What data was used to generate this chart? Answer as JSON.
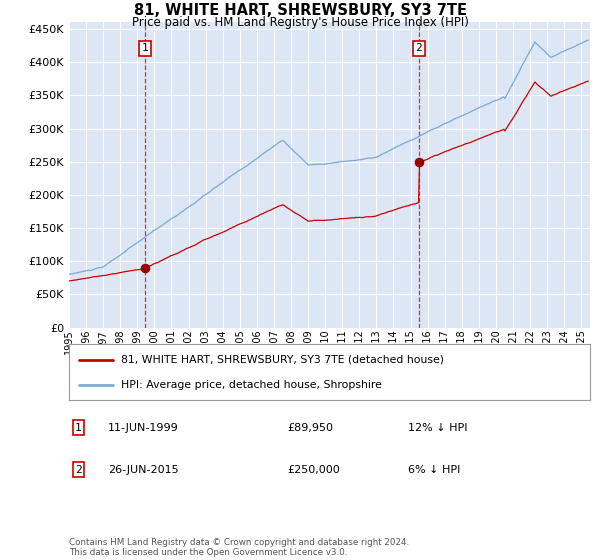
{
  "title": "81, WHITE HART, SHREWSBURY, SY3 7TE",
  "subtitle": "Price paid vs. HM Land Registry's House Price Index (HPI)",
  "ylim": [
    0,
    460000
  ],
  "yticks": [
    0,
    50000,
    100000,
    150000,
    200000,
    250000,
    300000,
    350000,
    400000,
    450000
  ],
  "xlim_start": 1995.0,
  "xlim_end": 2025.5,
  "bg_color": "#dce6f5",
  "grid_color": "#ffffff",
  "sale1_date": 1999.44,
  "sale1_price": 89950,
  "sale2_date": 2015.48,
  "sale2_price": 250000,
  "legend_line1": "81, WHITE HART, SHREWSBURY, SY3 7TE (detached house)",
  "legend_line2": "HPI: Average price, detached house, Shropshire",
  "annotation1_label": "1",
  "annotation1_date": "11-JUN-1999",
  "annotation1_price": "£89,950",
  "annotation1_hpi": "12% ↓ HPI",
  "annotation2_label": "2",
  "annotation2_date": "26-JUN-2015",
  "annotation2_price": "£250,000",
  "annotation2_hpi": "6% ↓ HPI",
  "footer": "Contains HM Land Registry data © Crown copyright and database right 2024.\nThis data is licensed under the Open Government Licence v3.0.",
  "hpi_color": "#7aaad4",
  "price_color": "#cc0000",
  "sale_dot_color": "#990000"
}
